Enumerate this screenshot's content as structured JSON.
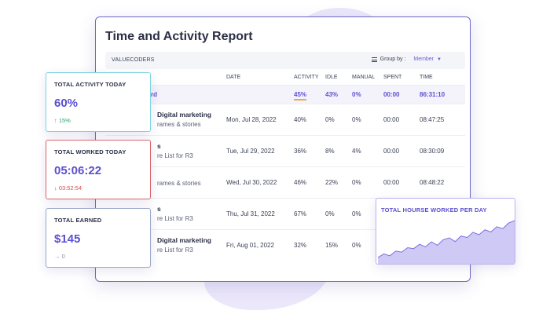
{
  "report": {
    "title": "Time and Activity Report",
    "org": "VALUECODERS",
    "group_by_label": "Group by :",
    "group_by_value": "Member",
    "columns": {
      "project": "LS ↑",
      "date": "DATE",
      "activity": "ACTIVITY",
      "idle": "IDLE",
      "manual": "MANUAL",
      "spent": "SPENT",
      "time": "TIME"
    },
    "total_row": {
      "label": "rd",
      "activity": "45%",
      "idle": "43%",
      "manual": "0%",
      "spent": "00:00",
      "time": "86:31:10"
    },
    "rows": [
      {
        "title": "Digital marketing",
        "detail": "rames & stories",
        "date": "Mon, Jul 28, 2022",
        "activity": "40%",
        "idle": "0%",
        "manual": "0%",
        "spent": "00:00",
        "time": "08:47:25"
      },
      {
        "title": "s",
        "detail": "re List for R3",
        "date": "Tue, Jul 29, 2022",
        "activity": "36%",
        "idle": "8%",
        "manual": "4%",
        "spent": "00:00",
        "time": "08:30:09"
      },
      {
        "title": "",
        "detail": "rames & stories",
        "date": "Wed, Jul 30, 2022",
        "activity": "46%",
        "idle": "22%",
        "manual": "0%",
        "spent": "00:00",
        "time": "08:48:22"
      },
      {
        "title": "s",
        "detail": "re List for R3",
        "date": "Thu, Jul 31, 2022",
        "activity": "67%",
        "idle": "0%",
        "manual": "0%",
        "spent": "",
        "time": ""
      },
      {
        "title": "Digital marketing",
        "detail": "re List for R3",
        "date": "Fri, Aug 01, 2022",
        "activity": "32%",
        "idle": "15%",
        "manual": "0%",
        "spent": "",
        "time": ""
      }
    ]
  },
  "cards": {
    "activity": {
      "label": "TOTAL ACTIVITY TODAY",
      "value": "60%",
      "change": "↑ 15%"
    },
    "worked": {
      "label": "TOTAL WORKED TODAY",
      "value": "05:06:22",
      "change": "↓ 03:52:54"
    },
    "earned": {
      "label": "TOTAL EARNED",
      "value": "$145",
      "change": "→ 0"
    }
  },
  "chart_data": {
    "type": "area",
    "title": "TOTAL HOURSE WORKED PER DAY",
    "values": [
      2,
      3.2,
      2.6,
      4.1,
      3.8,
      5.2,
      4.9,
      6.3,
      5.5,
      7.1,
      6.0,
      7.8,
      8.4,
      7.2,
      9.0,
      8.5,
      10.2,
      9.4,
      11.0,
      10.3,
      12.0,
      11.4,
      13.2,
      14.0
    ],
    "ylim": [
      0,
      15
    ],
    "grid": false,
    "legend": "none",
    "color": "#cfcaf5",
    "line_color": "#7a6fe0"
  }
}
